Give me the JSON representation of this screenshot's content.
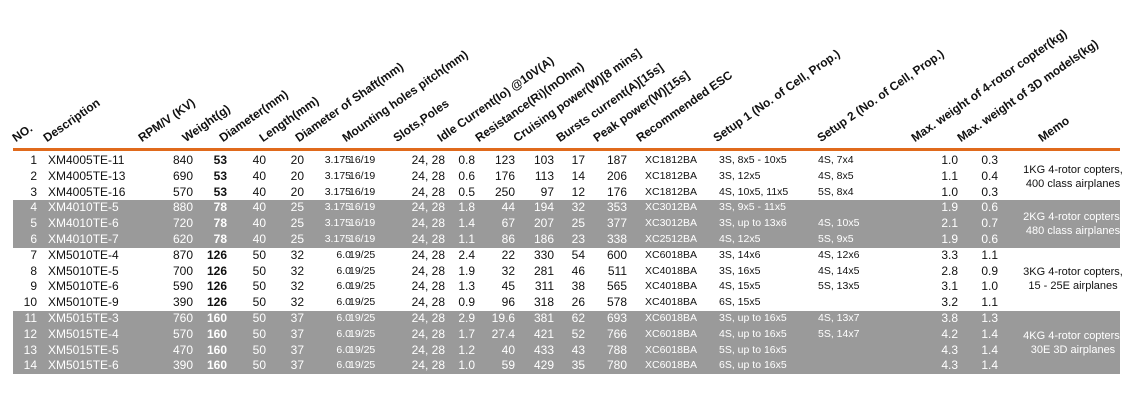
{
  "headers": {
    "no": "NO.",
    "description": "Description",
    "rpm": "RPM/V (KV)",
    "weight": "Weight(g)",
    "diameter": "Diameter(mm)",
    "length": "Length(mm)",
    "shaft": "Diameter of Shaft(mm)",
    "holes": "Mounting holes pitch(mm)",
    "slots": "Slots,Poles",
    "idle": "Idle Current(Io) @10V(A)",
    "resistance": "Resistance(Ri)(mOhm)",
    "cruising": "Cruising power(W)[8 mins]",
    "bursts": "Bursts current(A)[15s]",
    "peak": "Peak power(W)[15s]",
    "esc": "Recommended ESC",
    "setup1": "Setup 1 (No. of Cell, Prop.)",
    "setup2": "Setup 2 (No. of Cell, Prop.)",
    "max4": "Max. weight of 4-rotor copter(kg)",
    "max3d": "Max. weight of 3D models(kg)",
    "memo": "Memo"
  },
  "rows": [
    {
      "no": "1",
      "desc": "XM4005TE-11",
      "rpm": "840",
      "wt": "53",
      "dia": "40",
      "len": "20",
      "shaft": "3.175",
      "holes": "16/19",
      "slots": "24, 28",
      "idle": "0.8",
      "res": "123",
      "cruise": "103",
      "burst": "17",
      "peak": "187",
      "esc": "XC1812BA",
      "s1": "3S, 8x5 - 10x5",
      "s2": "4S, 7x4",
      "m4": "1.0",
      "m3d": "0.3"
    },
    {
      "no": "2",
      "desc": "XM4005TE-13",
      "rpm": "690",
      "wt": "53",
      "dia": "40",
      "len": "20",
      "shaft": "3.175",
      "holes": "16/19",
      "slots": "24, 28",
      "idle": "0.6",
      "res": "176",
      "cruise": "113",
      "burst": "14",
      "peak": "206",
      "esc": "XC1812BA",
      "s1": "3S, 12x5",
      "s2": "4S, 8x5",
      "m4": "1.1",
      "m3d": "0.4"
    },
    {
      "no": "3",
      "desc": "XM4005TE-16",
      "rpm": "570",
      "wt": "53",
      "dia": "40",
      "len": "20",
      "shaft": "3.175",
      "holes": "16/19",
      "slots": "24, 28",
      "idle": "0.5",
      "res": "250",
      "cruise": "97",
      "burst": "12",
      "peak": "176",
      "esc": "XC1812BA",
      "s1": "4S, 10x5, 11x5",
      "s2": "5S, 8x4",
      "m4": "1.0",
      "m3d": "0.3"
    },
    {
      "no": "4",
      "desc": "XM4010TE-5",
      "rpm": "880",
      "wt": "78",
      "dia": "40",
      "len": "25",
      "shaft": "3.175",
      "holes": "16/19",
      "slots": "24, 28",
      "idle": "1.8",
      "res": "44",
      "cruise": "194",
      "burst": "32",
      "peak": "353",
      "esc": "XC3012BA",
      "s1": "3S, 9x5 - 11x5",
      "s2": "",
      "m4": "1.9",
      "m3d": "0.6"
    },
    {
      "no": "5",
      "desc": "XM4010TE-6",
      "rpm": "720",
      "wt": "78",
      "dia": "40",
      "len": "25",
      "shaft": "3.175",
      "holes": "16/19",
      "slots": "24, 28",
      "idle": "1.4",
      "res": "67",
      "cruise": "207",
      "burst": "25",
      "peak": "377",
      "esc": "XC3012BA",
      "s1": "3S, up to 13x6",
      "s2": "4S, 10x5",
      "m4": "2.1",
      "m3d": "0.7"
    },
    {
      "no": "6",
      "desc": "XM4010TE-7",
      "rpm": "620",
      "wt": "78",
      "dia": "40",
      "len": "25",
      "shaft": "3.175",
      "holes": "16/19",
      "slots": "24, 28",
      "idle": "1.1",
      "res": "86",
      "cruise": "186",
      "burst": "23",
      "peak": "338",
      "esc": "XC2512BA",
      "s1": "4S, 12x5",
      "s2": "5S, 9x5",
      "m4": "1.9",
      "m3d": "0.6"
    },
    {
      "no": "7",
      "desc": "XM5010TE-4",
      "rpm": "870",
      "wt": "126",
      "dia": "50",
      "len": "32",
      "shaft": "6.0",
      "holes": "19/25",
      "slots": "24, 28",
      "idle": "2.4",
      "res": "22",
      "cruise": "330",
      "burst": "54",
      "peak": "600",
      "esc": "XC6018BA",
      "s1": "3S, 14x6",
      "s2": "4S, 12x6",
      "m4": "3.3",
      "m3d": "1.1"
    },
    {
      "no": "8",
      "desc": "XM5010TE-5",
      "rpm": "700",
      "wt": "126",
      "dia": "50",
      "len": "32",
      "shaft": "6.0",
      "holes": "19/25",
      "slots": "24, 28",
      "idle": "1.9",
      "res": "32",
      "cruise": "281",
      "burst": "46",
      "peak": "511",
      "esc": "XC4018BA",
      "s1": "3S, 16x5",
      "s2": "4S, 14x5",
      "m4": "2.8",
      "m3d": "0.9"
    },
    {
      "no": "9",
      "desc": "XM5010TE-6",
      "rpm": "590",
      "wt": "126",
      "dia": "50",
      "len": "32",
      "shaft": "6.0",
      "holes": "19/25",
      "slots": "24, 28",
      "idle": "1.3",
      "res": "45",
      "cruise": "311",
      "burst": "38",
      "peak": "565",
      "esc": "XC4018BA",
      "s1": "4S, 15x5",
      "s2": "5S, 13x5",
      "m4": "3.1",
      "m3d": "1.0"
    },
    {
      "no": "10",
      "desc": "XM5010TE-9",
      "rpm": "390",
      "wt": "126",
      "dia": "50",
      "len": "32",
      "shaft": "6.0",
      "holes": "19/25",
      "slots": "24, 28",
      "idle": "0.9",
      "res": "96",
      "cruise": "318",
      "burst": "26",
      "peak": "578",
      "esc": "XC4018BA",
      "s1": "6S, 15x5",
      "s2": "",
      "m4": "3.2",
      "m3d": "1.1"
    },
    {
      "no": "11",
      "desc": "XM5015TE-3",
      "rpm": "760",
      "wt": "160",
      "dia": "50",
      "len": "37",
      "shaft": "6.0",
      "holes": "19/25",
      "slots": "24, 28",
      "idle": "2.9",
      "res": "19.6",
      "cruise": "381",
      "burst": "62",
      "peak": "693",
      "esc": "XC6018BA",
      "s1": "3S, up to 16x5",
      "s2": "4S, 13x7",
      "m4": "3.8",
      "m3d": "1.3"
    },
    {
      "no": "12",
      "desc": "XM5015TE-4",
      "rpm": "570",
      "wt": "160",
      "dia": "50",
      "len": "37",
      "shaft": "6.0",
      "holes": "19/25",
      "slots": "24, 28",
      "idle": "1.7",
      "res": "27.4",
      "cruise": "421",
      "burst": "52",
      "peak": "766",
      "esc": "XC6018BA",
      "s1": "4S, up to 16x5",
      "s2": "5S, 14x7",
      "m4": "4.2",
      "m3d": "1.4"
    },
    {
      "no": "13",
      "desc": "XM5015TE-5",
      "rpm": "470",
      "wt": "160",
      "dia": "50",
      "len": "37",
      "shaft": "6.0",
      "holes": "19/25",
      "slots": "24, 28",
      "idle": "1.2",
      "res": "40",
      "cruise": "433",
      "burst": "43",
      "peak": "788",
      "esc": "XC6018BA",
      "s1": "5S, up to 16x5",
      "s2": "",
      "m4": "4.3",
      "m3d": "1.4"
    },
    {
      "no": "14",
      "desc": "XM5015TE-6",
      "rpm": "390",
      "wt": "160",
      "dia": "50",
      "len": "37",
      "shaft": "6.0",
      "holes": "19/25",
      "slots": "24, 28",
      "idle": "1.0",
      "res": "59",
      "cruise": "429",
      "burst": "35",
      "peak": "780",
      "esc": "XC6018BA",
      "s1": "6S, up to 16x5",
      "s2": "",
      "m4": "4.3",
      "m3d": "1.4"
    }
  ],
  "memos": [
    {
      "line1": "1KG 4-rotor copters,",
      "line2": "400 class airplanes"
    },
    {
      "line1": "2KG 4-rotor copters,",
      "line2": "480 class airplanes"
    },
    {
      "line1": "3KG 4-rotor copters,",
      "line2": "15 - 25E airplanes"
    },
    {
      "line1": "4KG 4-rotor copters,",
      "line2": "30E 3D airplanes"
    }
  ],
  "colors": {
    "accent": "#e06a1c",
    "band": "#9a9a9a"
  }
}
